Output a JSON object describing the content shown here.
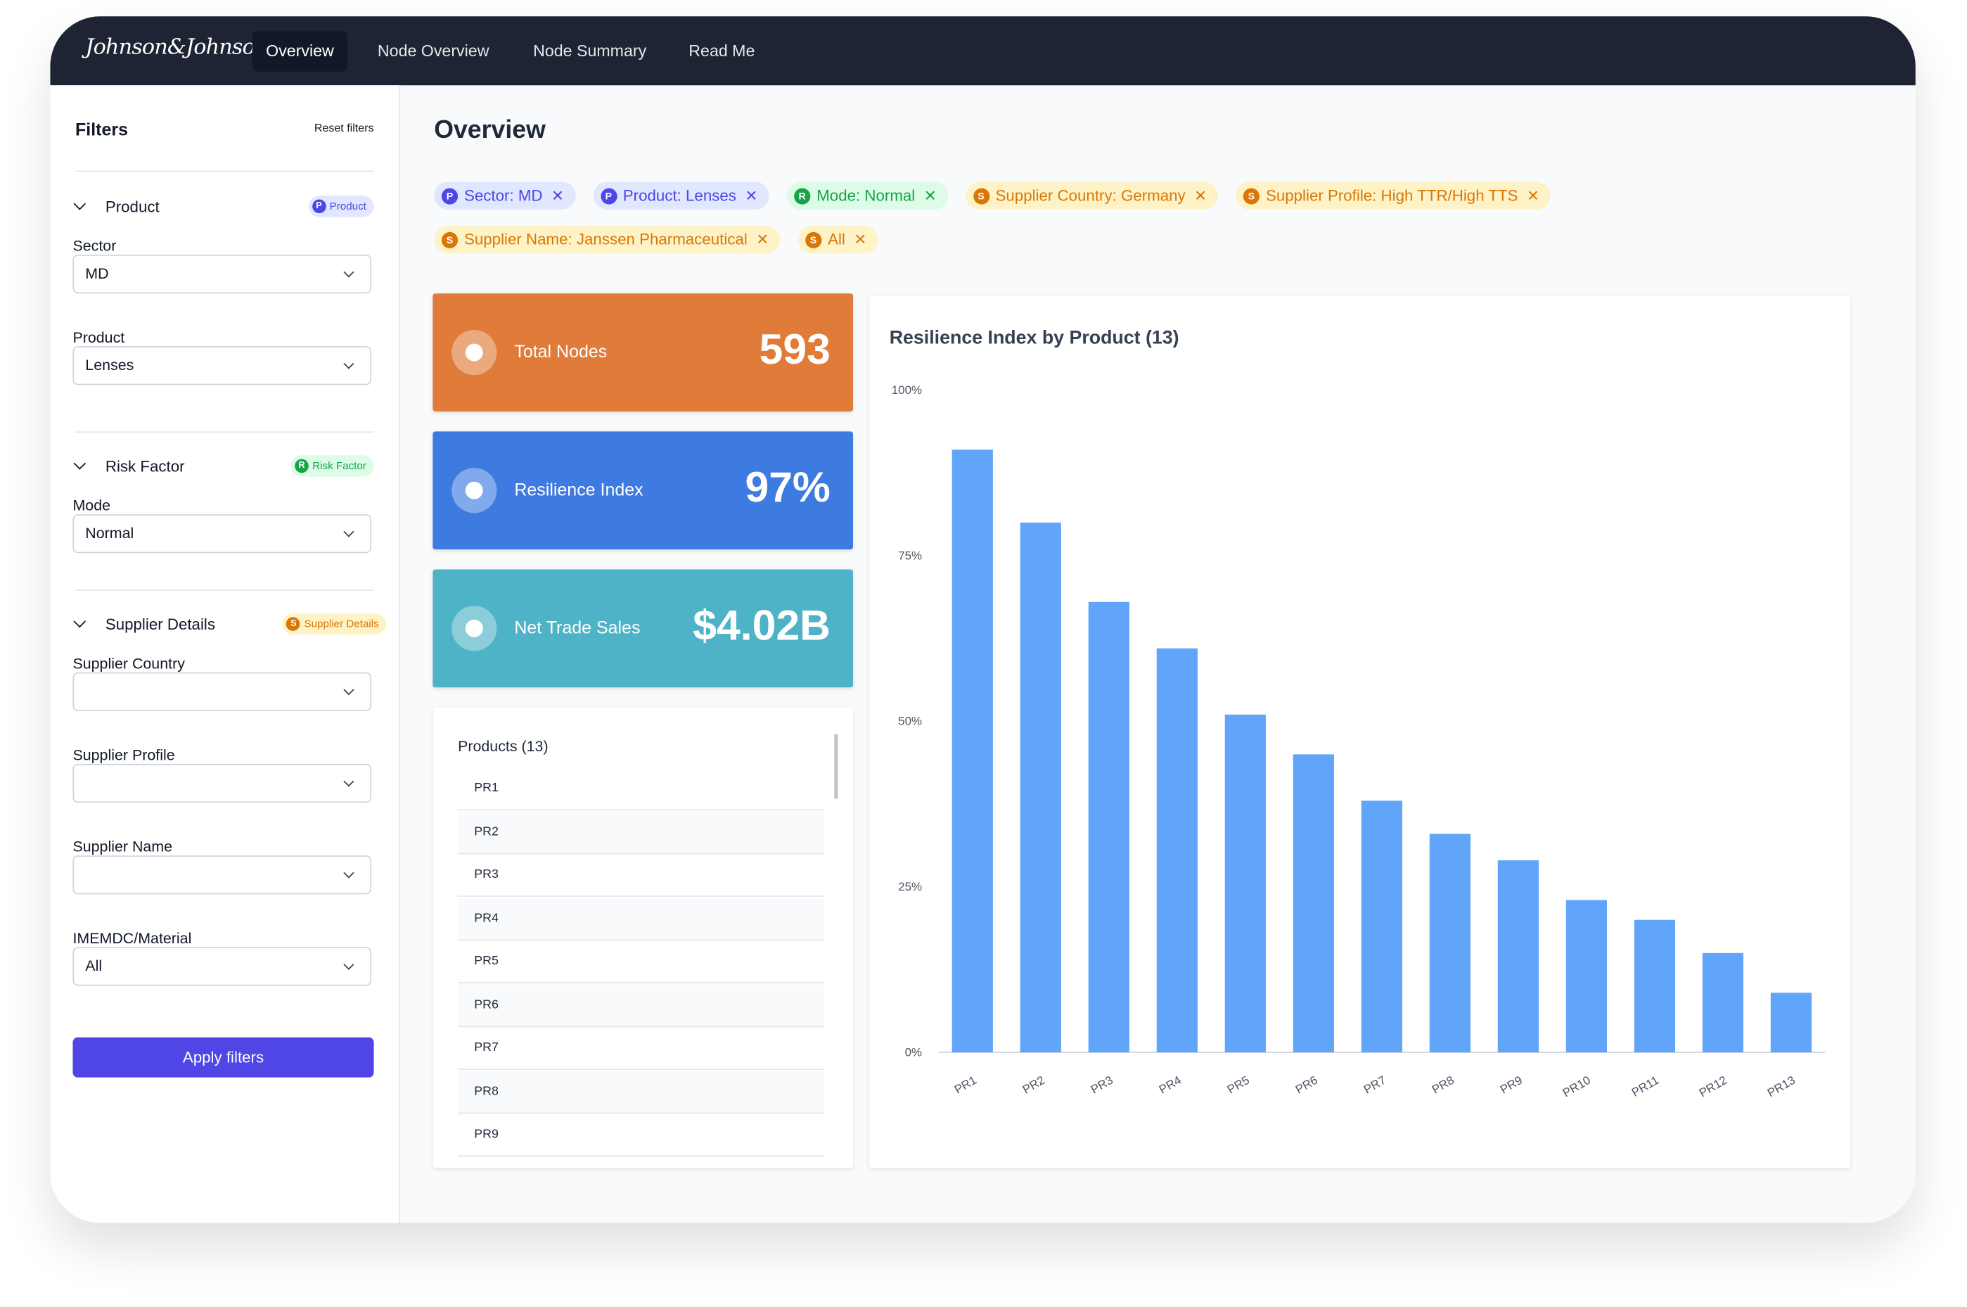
{
  "nav": {
    "brand": "Johnson&Johnson",
    "tabs": [
      "Overview",
      "Node Overview",
      "Node Summary",
      "Read Me"
    ],
    "active": 0
  },
  "filters": {
    "title": "Filters",
    "reset": "Reset filters",
    "sections": [
      {
        "title": "Product",
        "badge_letter": "P",
        "badge": "Product",
        "fields": [
          {
            "label": "Sector",
            "value": "MD"
          },
          {
            "label": "Product",
            "value": "Lenses"
          }
        ]
      },
      {
        "title": "Risk Factor",
        "badge_letter": "R",
        "badge": "Risk Factor",
        "fields": [
          {
            "label": "Mode",
            "value": "Normal"
          }
        ]
      },
      {
        "title": "Supplier Details",
        "badge_letter": "S",
        "badge": "Supplier Details",
        "fields": [
          {
            "label": "Supplier Country"
          },
          {
            "label": "Supplier Profile"
          },
          {
            "label": "Supplier Name"
          },
          {
            "label": "IMEMDC/Material",
            "value": "All"
          }
        ]
      }
    ],
    "apply": "Apply filters"
  },
  "page_title": "Overview",
  "chips": [
    {
      "letter": "P",
      "text": "Sector: MD"
    },
    {
      "letter": "P",
      "text": "Product: Lenses"
    },
    {
      "letter": "R",
      "text": "Mode: Normal"
    },
    {
      "letter": "S",
      "text": "Supplier Country: Germany"
    },
    {
      "letter": "S",
      "text": "Supplier Profile: High TTR/High TTS"
    },
    {
      "letter": "S",
      "text": "Supplier Name: Janssen Pharmaceutical"
    },
    {
      "letter": "S",
      "text": "All"
    }
  ],
  "kpis": [
    {
      "label": "Total Nodes",
      "value": "593",
      "color": "#e07b39"
    },
    {
      "label": "Resilience Index",
      "value": "97%",
      "color": "#3e7be0"
    },
    {
      "label": "Net Trade Sales",
      "value": "$4.02B",
      "color": "#4fb3c7"
    }
  ],
  "products": {
    "title": "Products (13)",
    "items": [
      "PR1",
      "PR2",
      "PR3",
      "PR4",
      "PR5",
      "PR6",
      "PR7",
      "PR8",
      "PR9"
    ]
  },
  "chart_data": {
    "type": "bar",
    "title": "Resilience Index by Product (13)",
    "categories": [
      "PR1",
      "PR2",
      "PR3",
      "PR4",
      "PR5",
      "PR6",
      "PR7",
      "PR8",
      "PR9",
      "PR10",
      "PR11",
      "PR12",
      "PR13"
    ],
    "values": [
      91,
      80,
      68,
      61,
      51,
      45,
      38,
      33,
      29,
      23,
      20,
      15,
      9
    ],
    "color": "#60a5fa",
    "ylim": [
      0,
      100
    ],
    "yticks": [
      {
        "value": 0,
        "label": "0%"
      },
      {
        "value": 25,
        "label": "25%"
      },
      {
        "value": 50,
        "label": "50%"
      },
      {
        "value": 75,
        "label": "75%"
      },
      {
        "value": 100,
        "label": "100%"
      }
    ]
  }
}
